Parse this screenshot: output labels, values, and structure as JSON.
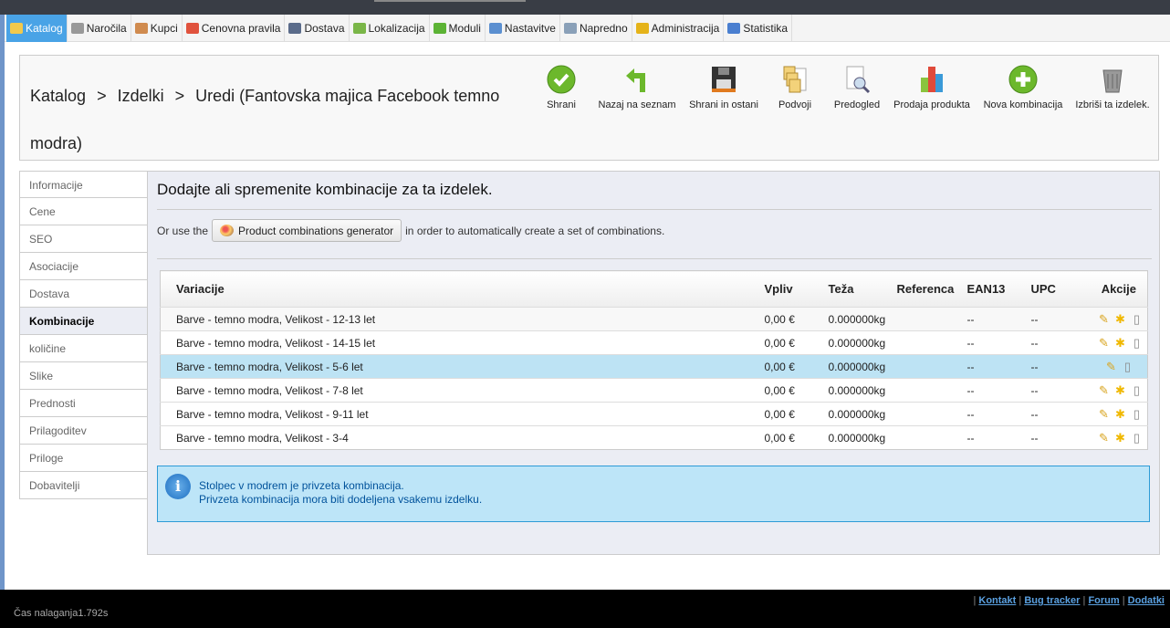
{
  "nav": {
    "tabs": [
      {
        "label": "Katalog",
        "icon": "folder-icon",
        "color": "#f2c94c",
        "active": true
      },
      {
        "label": "Naročila",
        "icon": "cart-icon",
        "color": "#999999"
      },
      {
        "label": "Kupci",
        "icon": "user-icon",
        "color": "#d08b4f"
      },
      {
        "label": "Cenovna pravila",
        "icon": "price-rules-icon",
        "color": "#e0523d"
      },
      {
        "label": "Dostava",
        "icon": "truck-icon",
        "color": "#5a6b8a"
      },
      {
        "label": "Lokalizacija",
        "icon": "globe-icon",
        "color": "#7ab648"
      },
      {
        "label": "Moduli",
        "icon": "puzzle-icon",
        "color": "#5cb335"
      },
      {
        "label": "Nastavitve",
        "icon": "settings-icon",
        "color": "#5b8fd0"
      },
      {
        "label": "Napredno",
        "icon": "wrench-icon",
        "color": "#8aa0b8"
      },
      {
        "label": "Administracija",
        "icon": "key-icon",
        "color": "#e5b319"
      },
      {
        "label": "Statistika",
        "icon": "chart-icon",
        "color": "#4a7fd0"
      }
    ]
  },
  "header": {
    "crumbs": [
      "Katalog",
      "Izdelki",
      "Uredi (Fantovska majica Facebook temno modra)"
    ],
    "separator": ">",
    "toolbar": [
      {
        "label": "Shrani",
        "icon": "check-icon"
      },
      {
        "label": "Nazaj na seznam",
        "icon": "back-arrow-icon"
      },
      {
        "label": "Shrani in ostani",
        "icon": "floppy-disk-icon"
      },
      {
        "label": "Podvoji",
        "icon": "duplicate-icon"
      },
      {
        "label": "Predogled",
        "icon": "preview-icon"
      },
      {
        "label": "Prodaja produkta",
        "icon": "bar-chart-icon"
      },
      {
        "label": "Nova kombinacija",
        "icon": "plus-icon"
      },
      {
        "label": "Izbriši ta izdelek.",
        "icon": "trash-icon"
      }
    ]
  },
  "sidebar": {
    "items": [
      "Informacije",
      "Cene",
      "SEO",
      "Asociacije",
      "Dostava",
      "Kombinacije",
      "količine",
      "Slike",
      "Prednosti",
      "Prilagoditev",
      "Priloge",
      "Dobavitelji"
    ],
    "active": "Kombinacije"
  },
  "main": {
    "title": "Dodajte ali spremenite kombinacije za ta izdelek.",
    "gen_prefix": "Or use the",
    "gen_button": "Product combinations generator",
    "gen_suffix": "in order to automatically create a set of combinations.",
    "table": {
      "headers": [
        "Variacije",
        "Vpliv",
        "Teža",
        "Referenca",
        "EAN13",
        "UPC",
        "Akcije"
      ],
      "rows": [
        {
          "variation": "Barve - temno modra, Velikost - 12-13 let",
          "impact": "0,00 €",
          "weight": "0.000000kg",
          "reference": "",
          "ean13": "--",
          "upc": "--",
          "default": false
        },
        {
          "variation": "Barve - temno modra, Velikost - 14-15 let",
          "impact": "0,00 €",
          "weight": "0.000000kg",
          "reference": "",
          "ean13": "--",
          "upc": "--",
          "default": false
        },
        {
          "variation": "Barve - temno modra, Velikost - 5-6 let",
          "impact": "0,00 €",
          "weight": "0.000000kg",
          "reference": "",
          "ean13": "--",
          "upc": "--",
          "default": true
        },
        {
          "variation": "Barve - temno modra, Velikost - 7-8 let",
          "impact": "0,00 €",
          "weight": "0.000000kg",
          "reference": "",
          "ean13": "--",
          "upc": "--",
          "default": false
        },
        {
          "variation": "Barve - temno modra, Velikost - 9-11 let",
          "impact": "0,00 €",
          "weight": "0.000000kg",
          "reference": "",
          "ean13": "--",
          "upc": "--",
          "default": false
        },
        {
          "variation": "Barve - temno modra, Velikost - 3-4",
          "impact": "0,00 €",
          "weight": "0.000000kg",
          "reference": "",
          "ean13": "--",
          "upc": "--",
          "default": false
        }
      ]
    },
    "info": {
      "line1": "Stolpec v modrem je privzeta kombinacija.",
      "line2": "Privzeta kombinacija mora biti dodeljena vsakemu izdelku."
    }
  },
  "footer": {
    "load_time": "Čas nalaganja1.792s",
    "links": [
      "Kontakt",
      "Bug tracker",
      "Forum",
      "Dodatki"
    ]
  }
}
